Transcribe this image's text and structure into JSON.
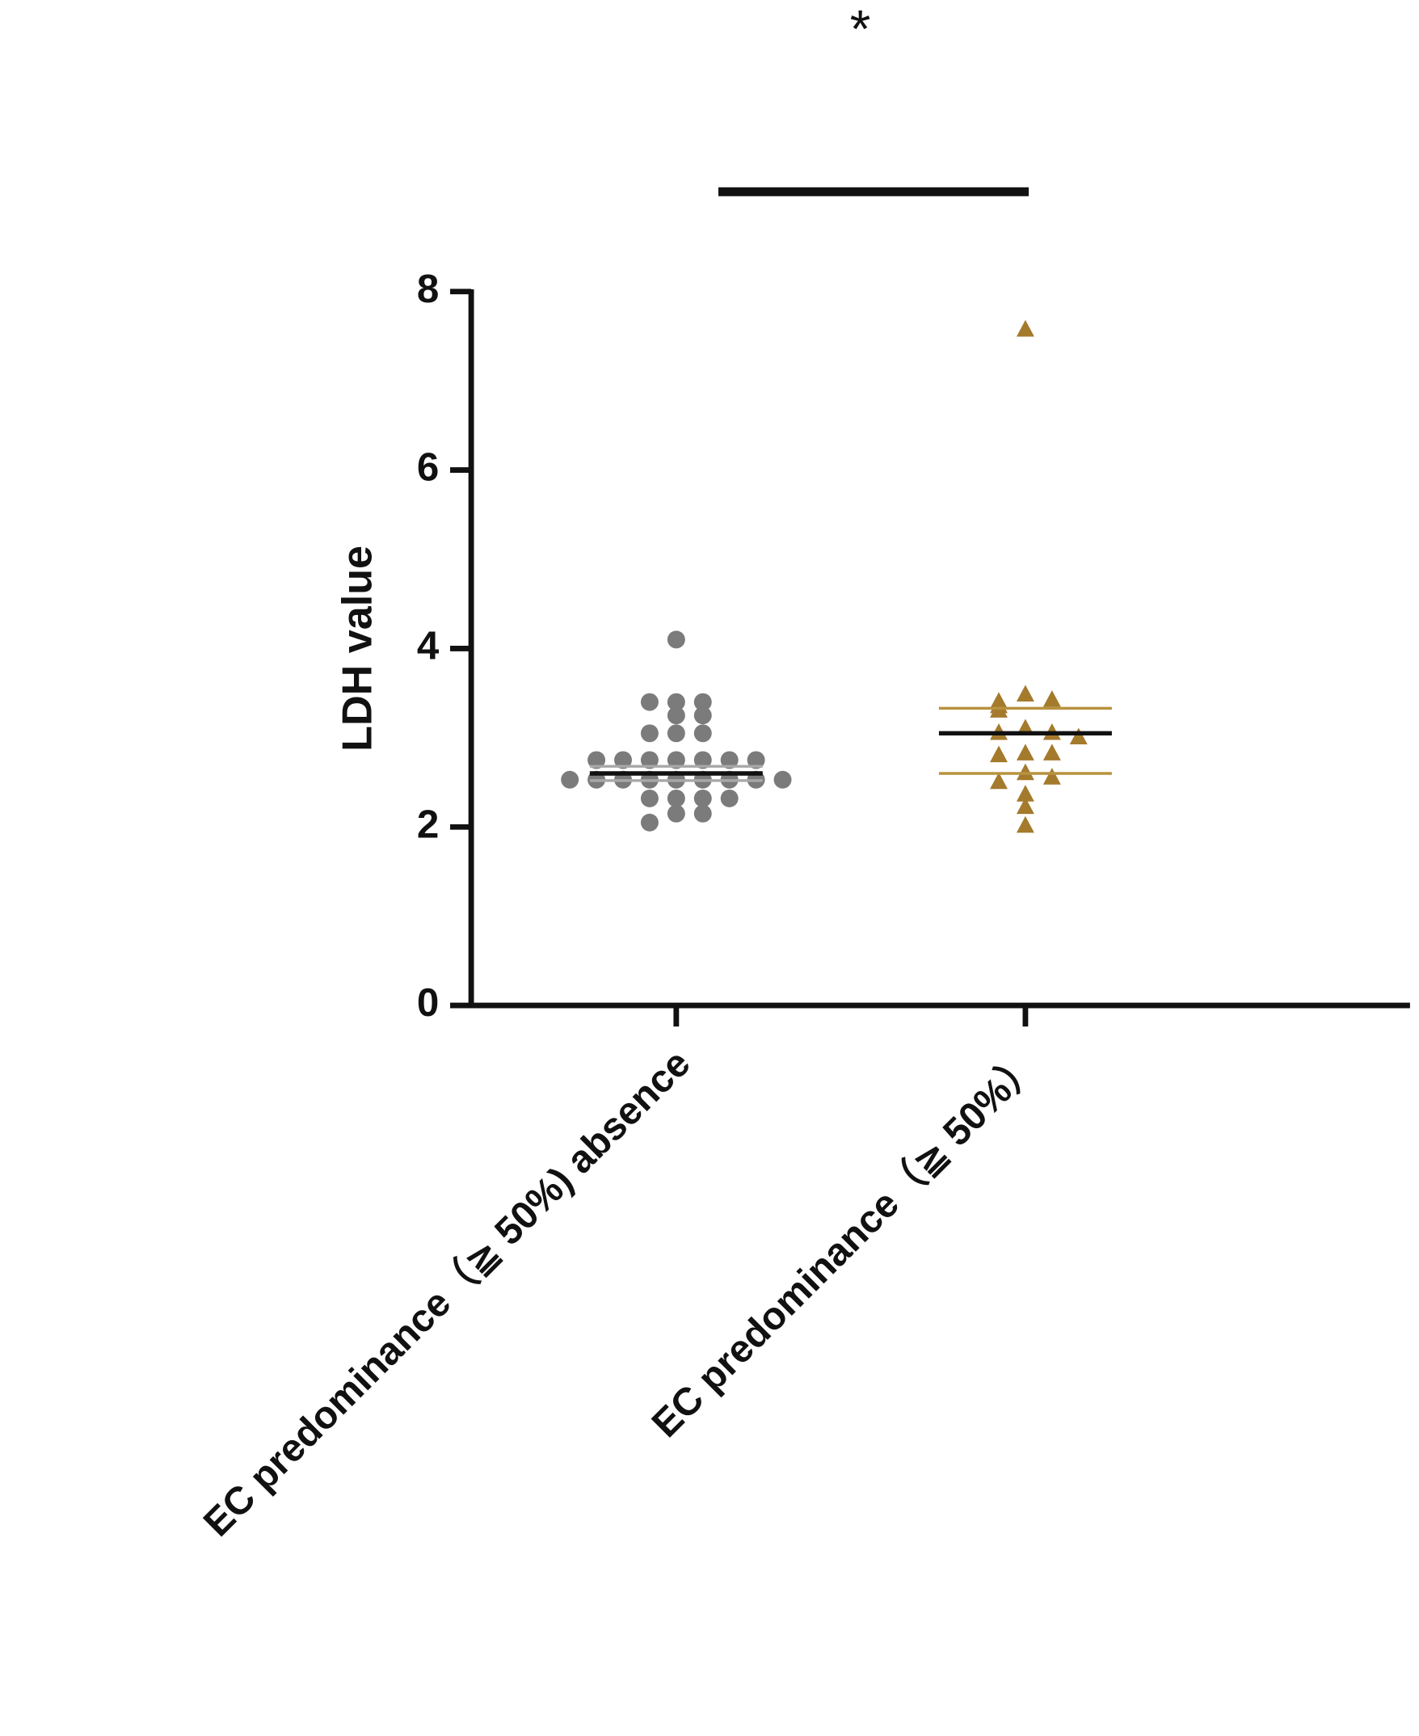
{
  "chart_data": {
    "type": "strip",
    "y_label": "LDH value",
    "significance": "*",
    "ylim": [
      0,
      8
    ],
    "yticks": [
      0,
      2,
      4,
      6,
      8
    ],
    "categories": [
      "EC predominance（≧ 50%) absence",
      "EC predominance（≧ 50%）"
    ],
    "series": [
      {
        "marker": "circle",
        "color": "#7b7b7b",
        "line_color": "#a8a8a8",
        "mean": 2.6,
        "whisker_low": 2.52,
        "whisker_high": 2.68,
        "values": [
          4.1,
          3.4,
          3.4,
          3.4,
          3.25,
          3.25,
          3.05,
          3.05,
          3.05,
          2.75,
          2.75,
          2.75,
          2.75,
          2.75,
          2.75,
          2.75,
          2.53,
          2.53,
          2.53,
          2.53,
          2.53,
          2.53,
          2.53,
          2.53,
          2.53,
          2.32,
          2.32,
          2.32,
          2.32,
          2.15,
          2.15,
          2.05
        ]
      },
      {
        "marker": "triangle",
        "color": "#a47a2c",
        "line_color": "#b8923f",
        "mean": 3.05,
        "whisker_low": 2.6,
        "whisker_high": 3.33,
        "values": [
          7.57,
          3.48,
          3.42,
          3.4,
          3.35,
          3.3,
          3.1,
          3.05,
          3.05,
          3.0,
          2.82,
          2.82,
          2.8,
          2.6,
          2.55,
          2.5,
          2.36,
          2.22,
          2.01
        ]
      }
    ]
  }
}
